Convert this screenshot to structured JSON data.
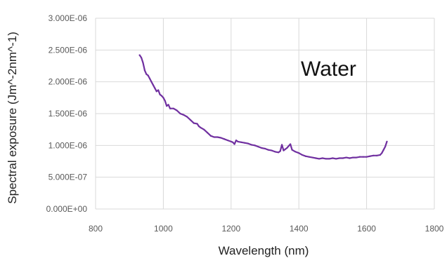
{
  "chart_data": {
    "type": "line",
    "xlabel": "Wavelength (nm)",
    "ylabel": "Spectral exposure (Jm^-2nm^-1)",
    "annotation": "Water",
    "xlim": [
      800,
      1800
    ],
    "ylim": [
      0,
      3e-06
    ],
    "x_ticks": [
      "800",
      "1000",
      "1200",
      "1400",
      "1600",
      "1800"
    ],
    "y_ticks": [
      "0.000E+00",
      "5.000E-07",
      "1.000E-06",
      "1.500E-06",
      "2.000E-06",
      "2.500E-06",
      "3.000E-06"
    ],
    "grid": true,
    "series": [
      {
        "color": "#7030a0",
        "x": [
          930,
          935,
          940,
          945,
          950,
          955,
          960,
          965,
          970,
          975,
          980,
          985,
          990,
          995,
          1000,
          1005,
          1010,
          1015,
          1020,
          1030,
          1040,
          1050,
          1060,
          1070,
          1080,
          1090,
          1100,
          1105,
          1110,
          1120,
          1130,
          1140,
          1150,
          1160,
          1170,
          1180,
          1190,
          1200,
          1205,
          1210,
          1215,
          1220,
          1230,
          1240,
          1250,
          1260,
          1270,
          1280,
          1290,
          1300,
          1310,
          1320,
          1330,
          1340,
          1345,
          1350,
          1355,
          1360,
          1365,
          1370,
          1375,
          1380,
          1390,
          1400,
          1410,
          1420,
          1430,
          1440,
          1450,
          1460,
          1470,
          1480,
          1490,
          1500,
          1510,
          1520,
          1530,
          1540,
          1550,
          1560,
          1570,
          1580,
          1590,
          1600,
          1610,
          1620,
          1630,
          1640,
          1645,
          1650,
          1655,
          1660
        ],
        "y": [
          2.42e-06,
          2.38e-06,
          2.3e-06,
          2.18e-06,
          2.12e-06,
          2.1e-06,
          2.05e-06,
          2e-06,
          1.95e-06,
          1.9e-06,
          1.85e-06,
          1.87e-06,
          1.8e-06,
          1.78e-06,
          1.75e-06,
          1.7e-06,
          1.62e-06,
          1.64e-06,
          1.58e-06,
          1.58e-06,
          1.55e-06,
          1.5e-06,
          1.48e-06,
          1.45e-06,
          1.4e-06,
          1.35e-06,
          1.34e-06,
          1.3e-06,
          1.28e-06,
          1.25e-06,
          1.2e-06,
          1.15e-06,
          1.13e-06,
          1.13e-06,
          1.12e-06,
          1.1e-06,
          1.08e-06,
          1.06e-06,
          1.05e-06,
          1.02e-06,
          1.08e-06,
          1.06e-06,
          1.05e-06,
          1.04e-06,
          1.03e-06,
          1.01e-06,
          1e-06,
          9.8e-07,
          9.6e-07,
          9.5e-07,
          9.3e-07,
          9.2e-07,
          9e-07,
          8.9e-07,
          9.1e-07,
          1.01e-06,
          9.2e-07,
          9.4e-07,
          9.6e-07,
          9.9e-07,
          1.02e-06,
          9.3e-07,
          9e-07,
          8.8e-07,
          8.5e-07,
          8.3e-07,
          8.2e-07,
          8.1e-07,
          8e-07,
          7.9e-07,
          8e-07,
          7.9e-07,
          7.9e-07,
          8e-07,
          7.9e-07,
          8e-07,
          8e-07,
          8.1e-07,
          8e-07,
          8.1e-07,
          8.1e-07,
          8.2e-07,
          8.2e-07,
          8.2e-07,
          8.3e-07,
          8.4e-07,
          8.4e-07,
          8.5e-07,
          8.8e-07,
          9.3e-07,
          9.8e-07,
          1.06e-06
        ]
      }
    ]
  }
}
